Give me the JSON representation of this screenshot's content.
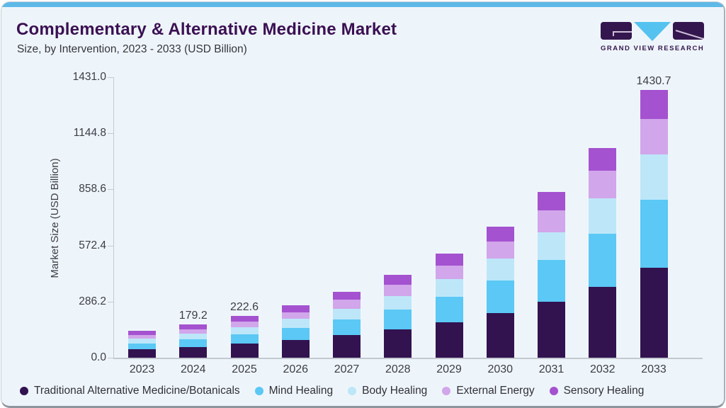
{
  "header": {
    "title": "Complementary & Alternative Medicine Market",
    "subtitle": "Size, by Intervention, 2023 - 2033 (USD Billion)"
  },
  "logo": {
    "text": "GRAND VIEW RESEARCH"
  },
  "colors": {
    "topbar": "#5db9e8",
    "card_bg": "#eef5fa",
    "title": "#3b1053",
    "logo_purple": "#34164e",
    "logo_blue": "#56c2f0",
    "axis": "#c3c9d0",
    "text": "#3d3c46"
  },
  "chart_data": {
    "type": "bar",
    "stacked": true,
    "title": "Complementary & Alternative Medicine Market Size, by Intervention, 2023 - 2033 (USD Billion)",
    "categories": [
      "2023",
      "2024",
      "2025",
      "2026",
      "2027",
      "2028",
      "2029",
      "2030",
      "2031",
      "2032",
      "2033"
    ],
    "series": [
      {
        "name": "Traditional Alternative Medicine/Botanicals",
        "color": "#321350",
        "values": [
          46,
          58,
          74,
          95,
          120,
          150,
          190,
          238,
          299,
          378,
          479
        ]
      },
      {
        "name": "Mind Healing",
        "color": "#5bc8f5",
        "values": [
          31,
          40,
          51,
          65,
          83,
          106,
          136,
          174,
          222,
          284,
          366
        ]
      },
      {
        "name": "Body Healing",
        "color": "#bde7f9",
        "values": [
          24,
          30,
          37,
          47,
          59,
          74,
          94,
          119,
          150,
          190,
          243
        ]
      },
      {
        "name": "External Energy",
        "color": "#d1a6ea",
        "values": [
          19,
          24.2,
          29.6,
          37,
          47,
          58,
          72,
          91,
          116,
          147,
          187
        ]
      },
      {
        "name": "Sensory Healing",
        "color": "#a452d0",
        "values": [
          25,
          27,
          31,
          37,
          43,
          53,
          64,
          78,
          97,
          121,
          155.7
        ]
      }
    ],
    "totals": [
      145,
      179.2,
      222.6,
      281,
      352,
      441,
      556,
      700,
      884,
      1120,
      1430.7
    ],
    "total_labels": {
      "2024": "179.2",
      "2025": "222.6",
      "2033": "1430.7"
    },
    "ylabel": "Market Size (USD Billion)",
    "yticks": [
      "1431.0",
      "1144.8",
      "858.6",
      "572.4",
      "286.2",
      "0.0"
    ],
    "ylim": [
      0,
      1431
    ],
    "grid": false,
    "legend_position": "bottom"
  }
}
